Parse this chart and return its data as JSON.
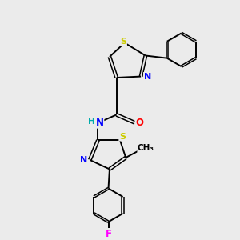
{
  "background_color": "#ebebeb",
  "atom_colors": {
    "C": "#000000",
    "N": "#0000ff",
    "S": "#cccc00",
    "O": "#ff0000",
    "F": "#ff00ff",
    "H": "#00aaaa"
  },
  "bond_color": "#000000",
  "figsize": [
    3.0,
    3.0
  ],
  "dpi": 100
}
